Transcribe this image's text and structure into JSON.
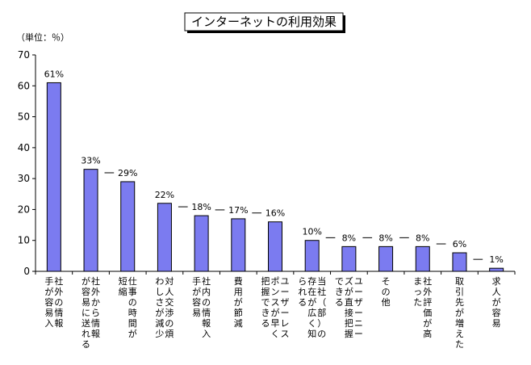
{
  "chart_data": {
    "type": "bar",
    "title": "インターネットの利用効果",
    "unit": "（単位：％）",
    "ylim": [
      0,
      70
    ],
    "yticks": [
      0,
      10,
      20,
      30,
      40,
      50,
      60,
      70
    ],
    "categories": [
      [
        "社外の情報",
        "手が容易入"
      ],
      [
        "社外から情報",
        "が容易に送れる"
      ],
      [
        "仕事の時間が",
        "短縮"
      ],
      [
        "対人交渉の煩",
        "わしさが減少"
      ],
      [
        "社内の情報入",
        "手が容易"
      ],
      [
        "費用が節減"
      ],
      [
        "ユーザーレス",
        "ポンスが早く",
        "把握できる"
      ],
      [
        "当社（部）の",
        "存在が広く知",
        "られる"
      ],
      [
        "ユーザーニー",
        "ズが直接把握",
        "できる"
      ],
      [
        "その他"
      ],
      [
        "社外評価が高",
        "まった"
      ],
      [
        "取引先が増えた"
      ],
      [
        "求人が容易"
      ]
    ],
    "values": [
      61,
      33,
      29,
      22,
      18,
      17,
      16,
      10,
      8,
      8,
      8,
      6,
      1
    ],
    "value_labels": [
      "61%",
      "33%",
      "29%",
      "22%",
      "18%",
      "17%",
      "16%",
      "10%",
      "8%",
      "8%",
      "8%",
      "6%",
      "1%"
    ],
    "bar_color": "#7b7bf0"
  }
}
